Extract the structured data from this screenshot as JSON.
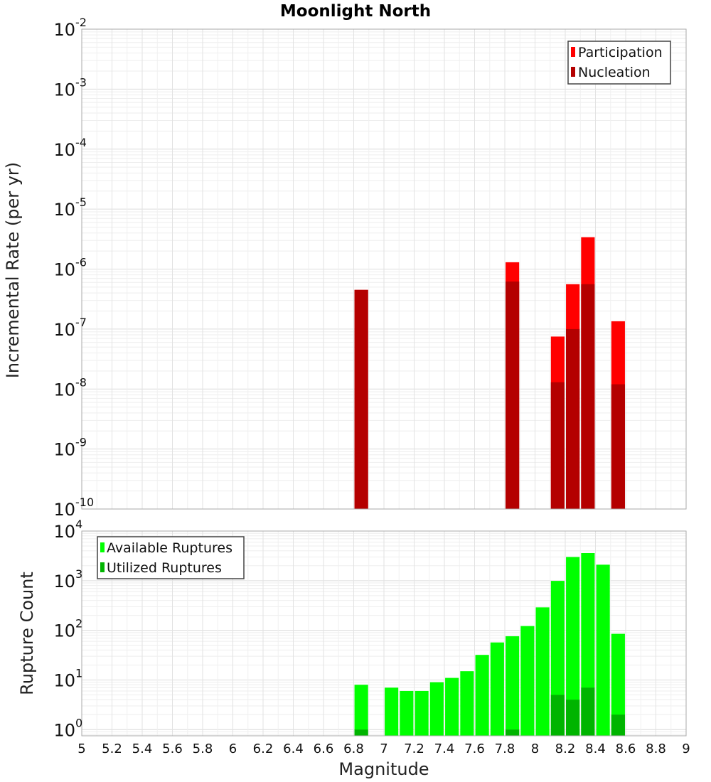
{
  "chart_data": [
    {
      "type": "bar",
      "title": "Moonlight North",
      "ylabel": "Incremental Rate (per yr)",
      "xlabel": "",
      "y_scale": "log",
      "ylim": [
        1e-10,
        0.01
      ],
      "xlim": [
        5,
        9
      ],
      "bar_width": 0.09,
      "y_ticks": [
        {
          "base": "10",
          "exp": "-10",
          "value": 1e-10
        },
        {
          "base": "10",
          "exp": "-9",
          "value": 1e-09
        },
        {
          "base": "10",
          "exp": "-8",
          "value": 1e-08
        },
        {
          "base": "10",
          "exp": "-7",
          "value": 1e-07
        },
        {
          "base": "10",
          "exp": "-6",
          "value": 1e-06
        },
        {
          "base": "10",
          "exp": "-5",
          "value": 1e-05
        },
        {
          "base": "10",
          "exp": "-4",
          "value": 0.0001
        },
        {
          "base": "10",
          "exp": "-3",
          "value": 0.001
        },
        {
          "base": "10",
          "exp": "-2",
          "value": 0.01
        }
      ],
      "legend_position": "top-right",
      "series": [
        {
          "name": "Participation",
          "color": "#ff0000",
          "x": [
            6.85,
            7.85,
            8.15,
            8.25,
            8.35,
            8.55
          ],
          "values": [
            4.5e-07,
            1.3e-06,
            7.5e-08,
            5.6e-07,
            3.4e-06,
            1.35e-07
          ]
        },
        {
          "name": "Nucleation",
          "color": "#b40000",
          "x": [
            6.85,
            7.85,
            8.15,
            8.25,
            8.35,
            8.55
          ],
          "values": [
            4.5e-07,
            6.2e-07,
            1.3e-08,
            1e-07,
            5.6e-07,
            1.2e-08
          ]
        }
      ]
    },
    {
      "type": "bar",
      "title": "",
      "ylabel": "Rupture Count",
      "xlabel": "Magnitude",
      "y_scale": "log",
      "ylim": [
        0.75,
        10000
      ],
      "xlim": [
        5,
        9
      ],
      "bar_width": 0.09,
      "y_ticks": [
        {
          "base": "10",
          "exp": "0",
          "value": 1
        },
        {
          "base": "10",
          "exp": "1",
          "value": 10
        },
        {
          "base": "10",
          "exp": "2",
          "value": 100
        },
        {
          "base": "10",
          "exp": "3",
          "value": 1000
        },
        {
          "base": "10",
          "exp": "4",
          "value": 10000
        }
      ],
      "x_ticks": [
        "5",
        "5.2",
        "5.4",
        "5.6",
        "5.8",
        "6",
        "6.2",
        "6.4",
        "6.6",
        "6.8",
        "7",
        "7.2",
        "7.4",
        "7.6",
        "7.8",
        "8",
        "8.2",
        "8.4",
        "8.6",
        "8.8",
        "9"
      ],
      "legend_position": "top-left",
      "series": [
        {
          "name": "Available Ruptures",
          "color": "#00ff00",
          "x": [
            6.85,
            7.05,
            7.15,
            7.25,
            7.35,
            7.45,
            7.55,
            7.65,
            7.75,
            7.85,
            7.95,
            8.05,
            8.15,
            8.25,
            8.35,
            8.45,
            8.55
          ],
          "values": [
            8,
            7,
            6,
            6,
            9,
            11,
            15,
            32,
            57,
            76,
            122,
            290,
            990,
            3000,
            3600,
            2100,
            85
          ]
        },
        {
          "name": "Utilized Ruptures",
          "color": "#00b400",
          "x": [
            6.85,
            7.85,
            8.15,
            8.25,
            8.35,
            8.55
          ],
          "values": [
            1,
            1,
            5,
            4,
            7,
            2
          ]
        }
      ]
    }
  ]
}
